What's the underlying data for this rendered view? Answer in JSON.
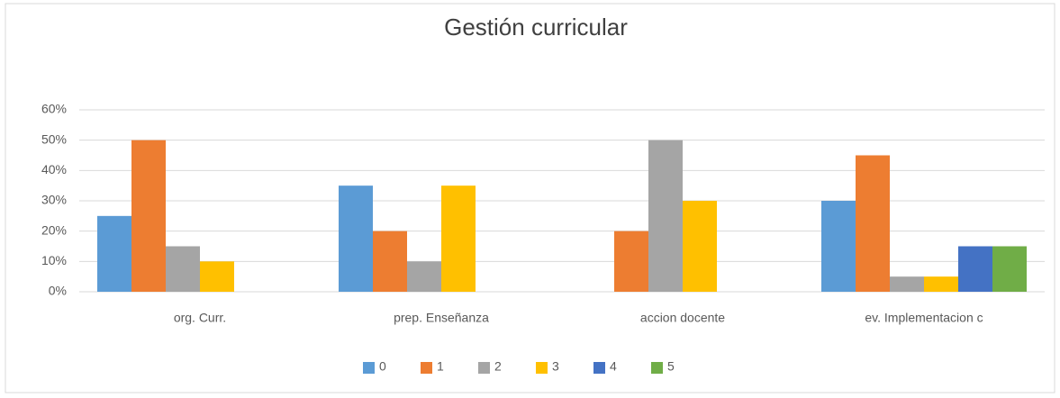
{
  "chart_data": {
    "type": "bar",
    "title": "Gestión curricular",
    "categories": [
      "org. Curr.",
      "prep. Enseñanza",
      "accion docente",
      "ev. Implementacion c"
    ],
    "series": [
      {
        "name": "0",
        "color": "#5b9bd5",
        "values": [
          25,
          35,
          0,
          30
        ]
      },
      {
        "name": "1",
        "color": "#ed7d31",
        "values": [
          50,
          20,
          20,
          45
        ]
      },
      {
        "name": "2",
        "color": "#a5a5a5",
        "values": [
          15,
          10,
          50,
          5
        ]
      },
      {
        "name": "3",
        "color": "#ffc000",
        "values": [
          10,
          35,
          30,
          5
        ]
      },
      {
        "name": "4",
        "color": "#4472c4",
        "values": [
          0,
          0,
          0,
          15
        ]
      },
      {
        "name": "5",
        "color": "#70ad47",
        "values": [
          0,
          0,
          0,
          15
        ]
      }
    ],
    "ylim": [
      0,
      60
    ],
    "yticks": [
      {
        "value": 0,
        "label": "0%"
      },
      {
        "value": 10,
        "label": "10%"
      },
      {
        "value": 20,
        "label": "20%"
      },
      {
        "value": 30,
        "label": "30%"
      },
      {
        "value": 40,
        "label": "40%"
      },
      {
        "value": 50,
        "label": "50%"
      },
      {
        "value": 60,
        "label": "60%"
      }
    ],
    "grid": true,
    "legend": "bottom"
  }
}
